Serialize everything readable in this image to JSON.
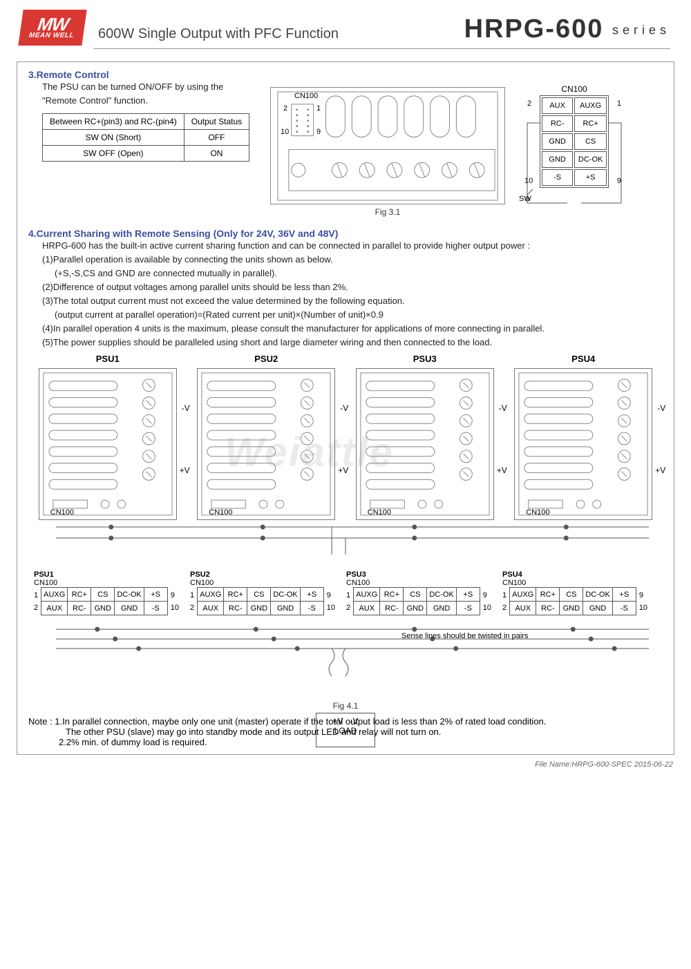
{
  "logo": {
    "top": "MW",
    "bottom": "MEAN WELL"
  },
  "headline": "600W Single Output with PFC Function",
  "model": "HRPG-600",
  "series_label": "series",
  "section3": {
    "title": "3.Remote Control",
    "desc1": "The PSU can be turned ON/OFF by using the",
    "desc2": "\"Remote Control\" function.",
    "table": {
      "h1": "Between RC+(pin3) and RC-(pin4)",
      "h2": "Output Status",
      "r1c1": "SW ON (Short)",
      "r1c2": "OFF",
      "r2c1": "SW OFF (Open)",
      "r2c2": "ON"
    },
    "fig": "Fig 3.1",
    "diag": {
      "conn_label": "CN100",
      "pins": {
        "p2": "2",
        "p1": "1",
        "p10": "10",
        "p9": "9"
      }
    },
    "cn100": {
      "label": "CN100",
      "num2": "2",
      "num1": "1",
      "num10": "10",
      "num9": "9",
      "sw": "SW",
      "rows": [
        [
          "AUX",
          "AUXG"
        ],
        [
          "RC-",
          "RC+"
        ],
        [
          "GND",
          "CS"
        ],
        [
          "GND",
          "DC-OK"
        ],
        [
          "-S",
          "+S"
        ]
      ]
    }
  },
  "section4": {
    "title": "4.Current Sharing with Remote Sensing (Only for 24V, 36V and 48V)",
    "p0": "HRPG-600 has the built-in active current sharing function and can be connected in parallel to provide higher output power :",
    "p1": "(1)Parallel operation is available by connecting the units shown as below.",
    "p1a": "(+S,-S,CS and GND are connected mutually in parallel).",
    "p2": "(2)Difference of output voltages among parallel units should be less than 2%.",
    "p3": "(3)The total output current must not exceed the value determined by the following equation.",
    "p3a": "(output current at parallel operation)=(Rated current per unit)×(Number of unit)×0.9",
    "p4": "(4)In parallel operation 4 units is the maximum, please consult the manufacturer for applications of more connecting in parallel.",
    "p5": "(5)The power supplies should be paralleled using short and large diameter wiring and then connected to the load.",
    "psu_labels": [
      "PSU1",
      "PSU2",
      "PSU3",
      "PSU4"
    ],
    "psu_cn": "CN100",
    "psu_neg": "-V",
    "psu_pos": "+V",
    "pintable": {
      "row1": [
        "AUXG",
        "RC+",
        "CS",
        "DC-OK",
        "+S"
      ],
      "row2": [
        "AUX",
        "RC-",
        "GND",
        "GND",
        "-S"
      ]
    },
    "pintable_num": {
      "l1": "1",
      "l2": "2",
      "r1": "9",
      "r2": "10"
    },
    "load": {
      "pv": "+V",
      "nv": "-V",
      "label": "LOAD"
    },
    "twist": "Sense lines should be twisted in pairs",
    "fig": "Fig 4.1"
  },
  "notes": {
    "n1": "Note : 1.In parallel connection, maybe only one unit (master) operate if the total output load is less than 2% of rated load condition.",
    "n1a": "The other PSU (slave) may go into standby mode and its output LED and relay will not turn on.",
    "n2": "2.2% min. of dummy load is required."
  },
  "footer": "File Name:HRPG-600-SPEC   2015-06-22",
  "watermark": "Weiattle"
}
